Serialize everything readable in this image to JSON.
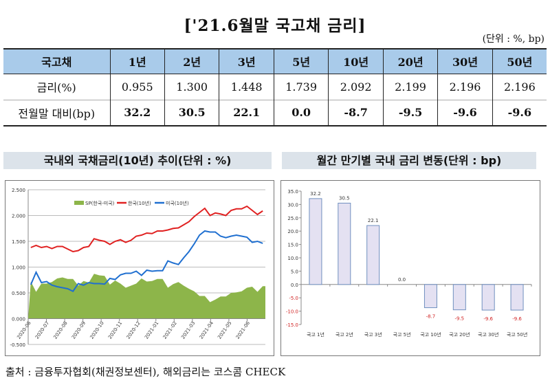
{
  "title": "['21.6월말 국고채 금리]",
  "unit": "(단위 : %, bp)",
  "table": {
    "headers": [
      "국고채",
      "1년",
      "2년",
      "3년",
      "5년",
      "10년",
      "20년",
      "30년",
      "50년"
    ],
    "rows": [
      {
        "label": "금리(%)",
        "values": [
          "0.955",
          "1.300",
          "1.448",
          "1.739",
          "2.092",
          "2.199",
          "2.196",
          "2.196"
        ]
      },
      {
        "label": "전월말 대비(bp)",
        "values": [
          "32.2",
          "30.5",
          "22.1",
          "0.0",
          "-8.7",
          "-9.5",
          "-9.6",
          "-9.6"
        ]
      }
    ]
  },
  "sections": {
    "left": "국내외 국채금리(10년) 추이(단위 : %)",
    "right": "월간 만기별 국내 금리 변동(단위 : bp)"
  },
  "source": "출처 : 금융투자협회(채권정보센터), 해외금리는 코스콤 CHECK",
  "chart_data": [
    {
      "type": "line",
      "ylim": [
        -0.5,
        2.5
      ],
      "yticks": [
        "-0.500",
        "0.000",
        "0.500",
        "1.000",
        "1.500",
        "2.000",
        "2.500"
      ],
      "xticks": [
        "2020-06",
        "2020-07",
        "2020-08",
        "2020-09",
        "2020-10",
        "2020-11",
        "2020-12",
        "2021-01",
        "2021-02",
        "2021-03",
        "2021-04",
        "2021-05",
        "2021-06"
      ],
      "legend": "top-center",
      "grid": true,
      "series": [
        {
          "name": "SP(한국-미국)",
          "kind": "area",
          "color": "#8db54a",
          "values": [
            0.72,
            0.52,
            0.68,
            0.68,
            0.71,
            0.78,
            0.8,
            0.77,
            0.77,
            0.64,
            0.73,
            0.7,
            0.87,
            0.84,
            0.83,
            0.66,
            0.74,
            0.68,
            0.6,
            0.64,
            0.68,
            0.78,
            0.72,
            0.73,
            0.77,
            0.77,
            0.6,
            0.67,
            0.71,
            0.64,
            0.58,
            0.53,
            0.44,
            0.44,
            0.32,
            0.37,
            0.43,
            0.43,
            0.5,
            0.51,
            0.53,
            0.6,
            0.62,
            0.52,
            0.63
          ]
        },
        {
          "name": "한국(10년)",
          "kind": "line",
          "color": "#e02020",
          "values": [
            1.38,
            1.42,
            1.38,
            1.4,
            1.36,
            1.4,
            1.4,
            1.35,
            1.3,
            1.32,
            1.38,
            1.4,
            1.55,
            1.52,
            1.5,
            1.44,
            1.5,
            1.53,
            1.48,
            1.52,
            1.6,
            1.62,
            1.66,
            1.65,
            1.7,
            1.7,
            1.72,
            1.75,
            1.76,
            1.82,
            1.88,
            1.98,
            2.06,
            2.14,
            2.0,
            2.05,
            2.03,
            2.0,
            2.1,
            2.13,
            2.13,
            2.18,
            2.1,
            2.02,
            2.09
          ]
        },
        {
          "name": "미국(10년)",
          "kind": "line",
          "color": "#1f6fd0",
          "values": [
            0.66,
            0.9,
            0.7,
            0.72,
            0.65,
            0.62,
            0.6,
            0.58,
            0.53,
            0.68,
            0.65,
            0.7,
            0.68,
            0.68,
            0.67,
            0.78,
            0.76,
            0.85,
            0.88,
            0.88,
            0.92,
            0.84,
            0.94,
            0.92,
            0.93,
            0.93,
            1.12,
            1.08,
            1.05,
            1.18,
            1.3,
            1.45,
            1.62,
            1.7,
            1.68,
            1.68,
            1.6,
            1.57,
            1.6,
            1.62,
            1.6,
            1.58,
            1.48,
            1.5,
            1.46
          ]
        }
      ]
    },
    {
      "type": "bar",
      "ylim": [
        -15,
        35
      ],
      "yticks": [
        "-15.0",
        "-10.0",
        "-5.0",
        "0.0",
        "5.0",
        "10.0",
        "15.0",
        "20.0",
        "25.0",
        "30.0",
        "35.0"
      ],
      "categories": [
        "국고 1년",
        "국고 2년",
        "국고 3년",
        "국고 5년",
        "국고 10년",
        "국고 20년",
        "국고 30년",
        "국고 50년"
      ],
      "values": [
        32.2,
        30.5,
        22.1,
        0.0,
        -8.7,
        -9.5,
        -9.6,
        -9.6
      ],
      "labels": [
        "32.2",
        "30.5",
        "22.1",
        "0.0",
        "-8.7",
        "-9.5",
        "-9.6",
        "-9.6"
      ],
      "bar_color": "#e4e1f2",
      "bar_edge": "#6f8fbf",
      "neg_label_color": "#d02020"
    }
  ]
}
